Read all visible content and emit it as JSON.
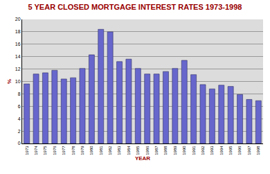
{
  "chart_data": {
    "type": "bar",
    "title": "5 YEAR CLOSED MORTGAGE INTEREST RATES 1973-1998",
    "x_label": "YEAR",
    "y_label": "%",
    "categories": [
      "1973",
      "1974",
      "1975",
      "1976",
      "1977",
      "1978",
      "1979",
      "1980",
      "1981",
      "1982",
      "1983",
      "1984",
      "1985",
      "1986",
      "1987",
      "1988",
      "1989",
      "1990",
      "1991",
      "1992",
      "1993",
      "1994",
      "1995",
      "1996",
      "1997",
      "1998"
    ],
    "values": [
      9.6,
      11.2,
      11.4,
      11.8,
      10.4,
      10.6,
      12.1,
      14.3,
      18.4,
      18.0,
      13.2,
      13.6,
      12.1,
      11.2,
      11.2,
      11.6,
      12.1,
      13.4,
      11.1,
      9.5,
      8.8,
      9.4,
      9.2,
      7.9,
      7.1,
      6.9
    ],
    "color": "#6666cc",
    "ylim": [
      0,
      20
    ],
    "yticks": [
      0,
      2,
      4,
      6,
      8,
      10,
      12,
      14,
      16,
      18,
      20
    ],
    "grid": true
  }
}
